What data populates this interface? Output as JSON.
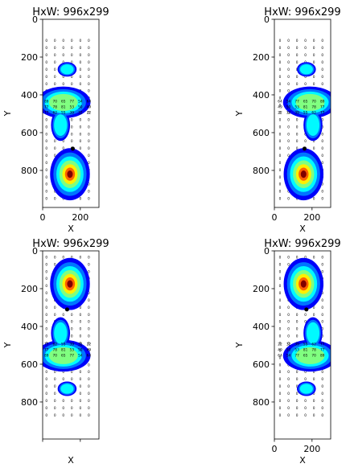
{
  "chart_data": [
    {
      "type": "heatmap",
      "title": "HxW: 996x299",
      "xlabel": "X",
      "ylabel": "Y",
      "xlim": [
        0,
        299
      ],
      "ylim": [
        996,
        0
      ],
      "xticks": [
        0,
        200
      ],
      "yticks": [
        0,
        200,
        400,
        600,
        800
      ],
      "show_xticklabels": true,
      "colormap": "jet",
      "blobs": [
        {
          "cx": 130,
          "cy": 265,
          "rx": 42,
          "ry": 32,
          "peak": 0.4
        },
        {
          "cx": 110,
          "cy": 440,
          "rx": 120,
          "ry": 70,
          "peak": 0.62
        },
        {
          "cx": 95,
          "cy": 560,
          "rx": 42,
          "ry": 70,
          "peak": 0.42
        },
        {
          "cx": 145,
          "cy": 820,
          "rx": 88,
          "ry": 115,
          "peak": 1.0
        }
      ],
      "marker_points": [
        {
          "x": 160,
          "y": 685
        }
      ],
      "cell_grid": {
        "x_start": 20,
        "x_step": 45,
        "y_start": 120,
        "y_step": 38,
        "count_x": 6,
        "count_y": 23
      },
      "cell_values": [
        {
          "y": 440,
          "values": [
            89,
            70,
            65,
            77,
            54,
            64
          ]
        },
        {
          "y": 470,
          "values": [
            77,
            78,
            81,
            53,
            50,
            49
          ]
        },
        {
          "y": 500,
          "values": [
            77,
            62,
            55,
            39,
            32,
            22
          ]
        }
      ]
    },
    {
      "type": "heatmap",
      "title": "HxW: 996x299",
      "xlabel": "X",
      "ylabel": "Y",
      "xlim": [
        0,
        299
      ],
      "ylim": [
        996,
        0
      ],
      "xticks": [
        0,
        200
      ],
      "yticks": [
        0,
        200,
        400,
        600,
        800
      ],
      "show_xticklabels": true,
      "colormap": "jet",
      "blobs": [
        {
          "cx": 170,
          "cy": 265,
          "rx": 42,
          "ry": 32,
          "peak": 0.4
        },
        {
          "cx": 190,
          "cy": 440,
          "rx": 120,
          "ry": 70,
          "peak": 0.62
        },
        {
          "cx": 205,
          "cy": 560,
          "rx": 42,
          "ry": 70,
          "peak": 0.42
        },
        {
          "cx": 155,
          "cy": 820,
          "rx": 88,
          "ry": 115,
          "peak": 1.0
        }
      ],
      "marker_points": [
        {
          "x": 160,
          "y": 685
        }
      ],
      "cell_grid": {
        "x_start": 30,
        "x_step": 45,
        "y_start": 120,
        "y_step": 38,
        "count_x": 6,
        "count_y": 23
      },
      "cell_values": [
        {
          "y": 440,
          "values": [
            64,
            54,
            77,
            65,
            70,
            89
          ]
        },
        {
          "y": 470,
          "values": [
            49,
            50,
            53,
            81,
            78,
            77
          ]
        },
        {
          "y": 500,
          "values": [
            22,
            32,
            39,
            55,
            62,
            77
          ]
        }
      ]
    },
    {
      "type": "heatmap",
      "title": "HxW: 996x299",
      "xlabel": "X",
      "ylabel": "Y",
      "xlim": [
        0,
        299
      ],
      "ylim": [
        996,
        0
      ],
      "xticks": [
        0,
        200
      ],
      "yticks": [
        0,
        200,
        400,
        600,
        800
      ],
      "show_xticklabels": false,
      "colormap": "jet",
      "blobs": [
        {
          "cx": 145,
          "cy": 175,
          "rx": 88,
          "ry": 115,
          "peak": 1.0
        },
        {
          "cx": 95,
          "cy": 435,
          "rx": 42,
          "ry": 70,
          "peak": 0.42
        },
        {
          "cx": 110,
          "cy": 555,
          "rx": 120,
          "ry": 70,
          "peak": 0.62
        },
        {
          "cx": 130,
          "cy": 730,
          "rx": 42,
          "ry": 32,
          "peak": 0.4
        }
      ],
      "marker_points": [
        {
          "x": 130,
          "y": 310
        }
      ],
      "cell_grid": {
        "x_start": 20,
        "x_step": 45,
        "y_start": 40,
        "y_step": 38,
        "count_x": 6,
        "count_y": 23
      },
      "cell_values": [
        {
          "y": 500,
          "values": [
            77,
            62,
            55,
            39,
            32,
            22
          ]
        },
        {
          "y": 530,
          "values": [
            77,
            78,
            81,
            53,
            50,
            49
          ]
        },
        {
          "y": 560,
          "values": [
            89,
            70,
            65,
            77,
            54,
            64
          ]
        }
      ]
    },
    {
      "type": "heatmap",
      "title": "HxW: 996x299",
      "xlabel": "X",
      "ylabel": "Y",
      "xlim": [
        0,
        299
      ],
      "ylim": [
        996,
        0
      ],
      "xticks": [
        0,
        200
      ],
      "yticks": [
        0,
        200,
        400,
        600,
        800
      ],
      "show_xticklabels": true,
      "colormap": "jet",
      "blobs": [
        {
          "cx": 155,
          "cy": 175,
          "rx": 88,
          "ry": 115,
          "peak": 1.0
        },
        {
          "cx": 205,
          "cy": 435,
          "rx": 42,
          "ry": 70,
          "peak": 0.42
        },
        {
          "cx": 190,
          "cy": 555,
          "rx": 120,
          "ry": 70,
          "peak": 0.62
        },
        {
          "cx": 170,
          "cy": 730,
          "rx": 42,
          "ry": 32,
          "peak": 0.4
        }
      ],
      "marker_points": [
        {
          "x": 170,
          "y": 310
        }
      ],
      "cell_grid": {
        "x_start": 30,
        "x_step": 45,
        "y_start": 40,
        "y_step": 38,
        "count_x": 6,
        "count_y": 23
      },
      "cell_values": [
        {
          "y": 500,
          "values": [
            22,
            32,
            39,
            55,
            62,
            77
          ]
        },
        {
          "y": 530,
          "values": [
            49,
            50,
            53,
            81,
            78,
            77
          ]
        },
        {
          "y": 560,
          "values": [
            64,
            54,
            77,
            65,
            70,
            89
          ]
        }
      ]
    }
  ]
}
